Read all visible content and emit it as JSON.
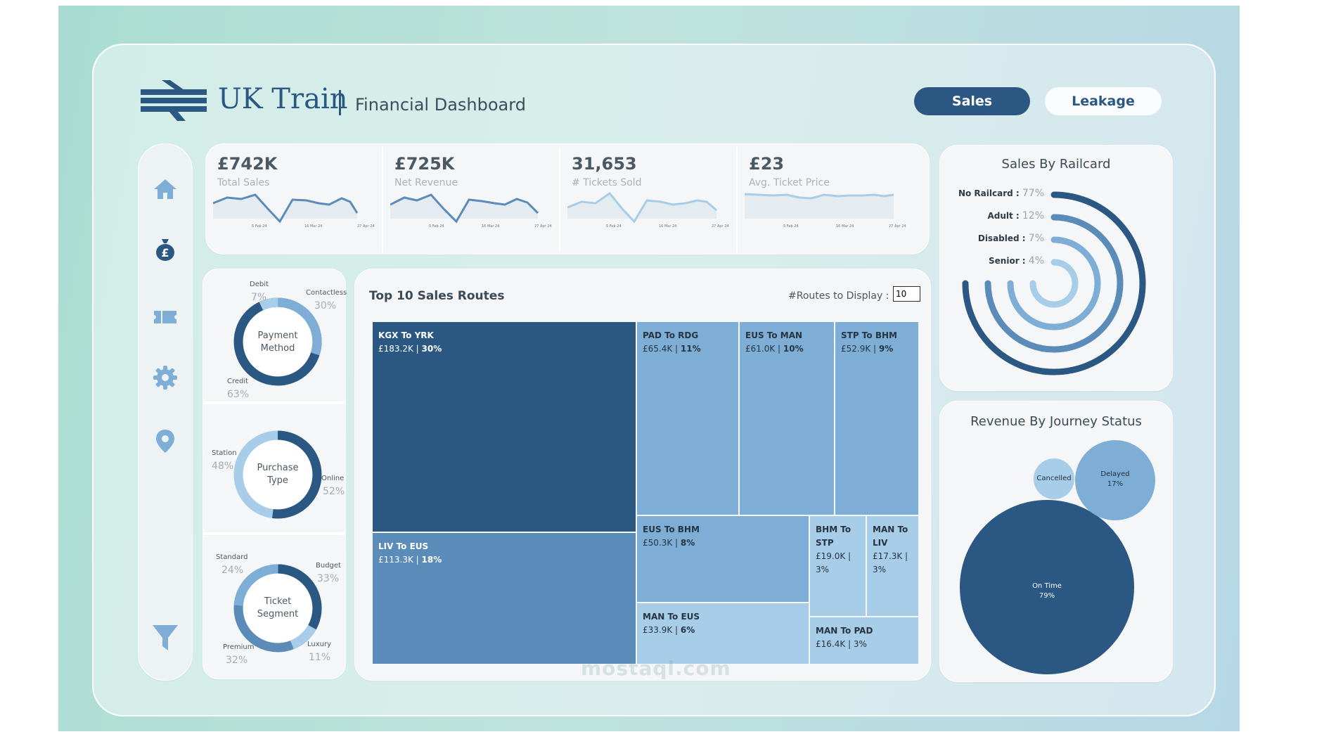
{
  "header": {
    "brand": "UK Train",
    "subtitle": "Financial Dashboard",
    "btn_sales": "Sales",
    "btn_leakage": "Leakage"
  },
  "colors": {
    "dark": "#2b5783",
    "mid": "#5b8cb9",
    "light": "#7eaed6",
    "lighter": "#a7cde8",
    "sparkline": "#6fa1cd"
  },
  "kpis": [
    {
      "value": "£742K",
      "label": "Total Sales",
      "ticks": [
        "5 Feb 24",
        "16 Mar 24",
        "27 Apr 24"
      ]
    },
    {
      "value": "£725K",
      "label": "Net Revenue",
      "ticks": [
        "5 Feb 24",
        "16 Mar 24",
        "27 Apr 24"
      ]
    },
    {
      "value": "31,653",
      "label": "# Tickets Sold",
      "ticks": [
        "5 Feb 24",
        "16 Mar 24",
        "27 Apr 24"
      ]
    },
    {
      "value": "£23",
      "label": "Avg. Ticket Price",
      "ticks": [
        "5 Feb 24",
        "16 Mar 24",
        "27 Apr 24"
      ]
    }
  ],
  "donuts": {
    "payment": {
      "center": [
        "Payment",
        "Method"
      ],
      "debit": "Debit",
      "debit_pct": "7%",
      "contactless": "Contactless",
      "contactless_pct": "30%",
      "credit": "Credit",
      "credit_pct": "63%"
    },
    "purchase": {
      "center": [
        "Purchase",
        "Type"
      ],
      "station": "Station",
      "station_pct": "48%",
      "online": "Online",
      "online_pct": "52%"
    },
    "segment": {
      "center": [
        "Ticket",
        "Segment"
      ],
      "standard": "Standard",
      "standard_pct": "24%",
      "budget": "Budget",
      "budget_pct": "33%",
      "premium": "Premium",
      "premium_pct": "32%",
      "luxury": "Luxury",
      "luxury_pct": "11%"
    }
  },
  "treemap": {
    "title": "Top 10 Sales Routes",
    "routes_label": "#Routes to Display :",
    "routes_value": "10",
    "routes": [
      {
        "name": "KGX To YRK",
        "value": "£183.2K",
        "pct": "30%"
      },
      {
        "name": "LIV To EUS",
        "value": "£113.3K",
        "pct": "18%"
      },
      {
        "name": "PAD To RDG",
        "value": "£65.4K",
        "pct": "11%"
      },
      {
        "name": "EUS To MAN",
        "value": "£61.0K",
        "pct": "10%"
      },
      {
        "name": "STP To BHM",
        "value": "£52.9K",
        "pct": "9%"
      },
      {
        "name": "EUS To BHM",
        "value": "£50.3K",
        "pct": "8%"
      },
      {
        "name": "MAN To EUS",
        "value": "£33.9K",
        "pct": "6%"
      },
      {
        "name": "BHM To STP",
        "value": "£19.0K",
        "pct": "3%"
      },
      {
        "name": "MAN To LIV",
        "value": "£17.3K",
        "pct": "3%"
      },
      {
        "name": "MAN To PAD",
        "value": "£16.4K",
        "pct": "3%"
      }
    ]
  },
  "railcard": {
    "title": "Sales By Railcard",
    "items": [
      {
        "label": "No Railcard :",
        "pct": "77%"
      },
      {
        "label": "Adult :",
        "pct": "12%"
      },
      {
        "label": "Disabled :",
        "pct": "7%"
      },
      {
        "label": "Senior :",
        "pct": "4%"
      }
    ]
  },
  "journey": {
    "title": "Revenue By Journey Status",
    "on_time": "On Time",
    "on_time_pct": "79%",
    "delayed": "Delayed",
    "delayed_pct": "17%",
    "cancelled": "Cancelled"
  },
  "watermark": "mostaql.com"
}
